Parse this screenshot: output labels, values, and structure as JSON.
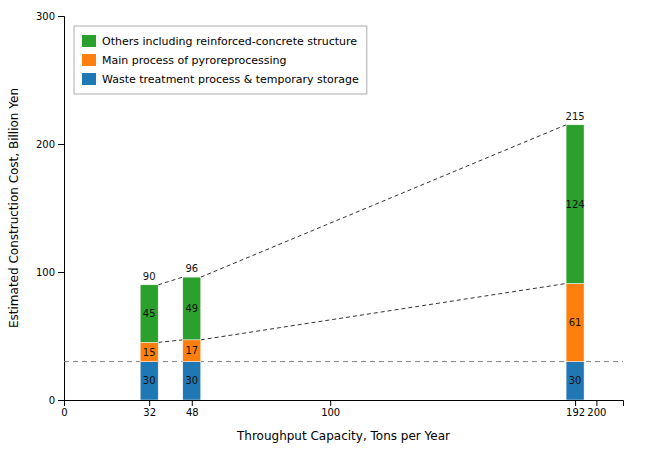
{
  "chart_data": {
    "type": "bar",
    "stacked": true,
    "x": [
      32,
      48,
      192
    ],
    "series": [
      {
        "name": "Waste treatment process & temporary storage",
        "values": [
          30,
          30,
          30
        ]
      },
      {
        "name": "Main process of pyroreprocessing",
        "values": [
          15,
          17,
          61
        ]
      },
      {
        "name": "Others including reinforced-concrete structure",
        "values": [
          45,
          49,
          124
        ]
      }
    ],
    "totals": [
      90,
      96,
      215
    ],
    "xlabel": "Throughput Capacity, Tons per Year",
    "ylabel": "Estimated Construction Cost, Billion Yen",
    "xlim": [
      0,
      210
    ],
    "ylim": [
      0,
      300
    ],
    "xticks": [
      0,
      32,
      48,
      100,
      192,
      200
    ],
    "yticks": [
      0,
      100,
      200,
      300
    ],
    "hlines": [
      {
        "value": 30,
        "color": "gray",
        "line_style": "dashed"
      }
    ],
    "legend": "upper left",
    "data_labels": true,
    "grid": false
  }
}
